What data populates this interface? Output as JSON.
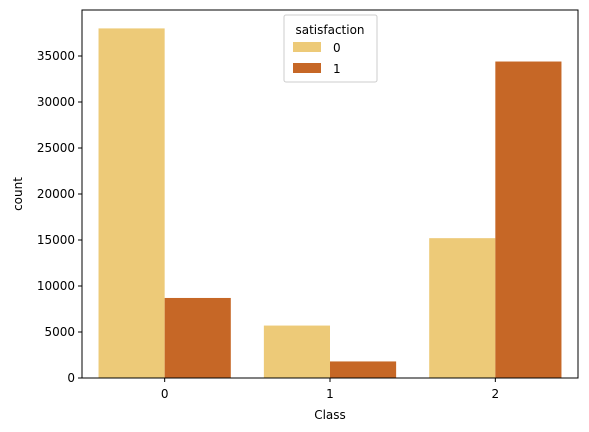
{
  "chart_data": {
    "type": "bar",
    "categories": [
      "0",
      "1",
      "2"
    ],
    "series": [
      {
        "name": "0",
        "values": [
          38000,
          5700,
          15200
        ],
        "color": "#EDCA78"
      },
      {
        "name": "1",
        "values": [
          8700,
          1800,
          34400
        ],
        "color": "#C66726"
      }
    ],
    "title": "",
    "xlabel": "Class",
    "ylabel": "count",
    "ylim": [
      0,
      40000
    ],
    "yticks": [
      0,
      5000,
      10000,
      15000,
      20000,
      25000,
      30000,
      35000
    ],
    "grid": false,
    "legend": {
      "title": "satisfaction",
      "placement": "top-center"
    }
  }
}
